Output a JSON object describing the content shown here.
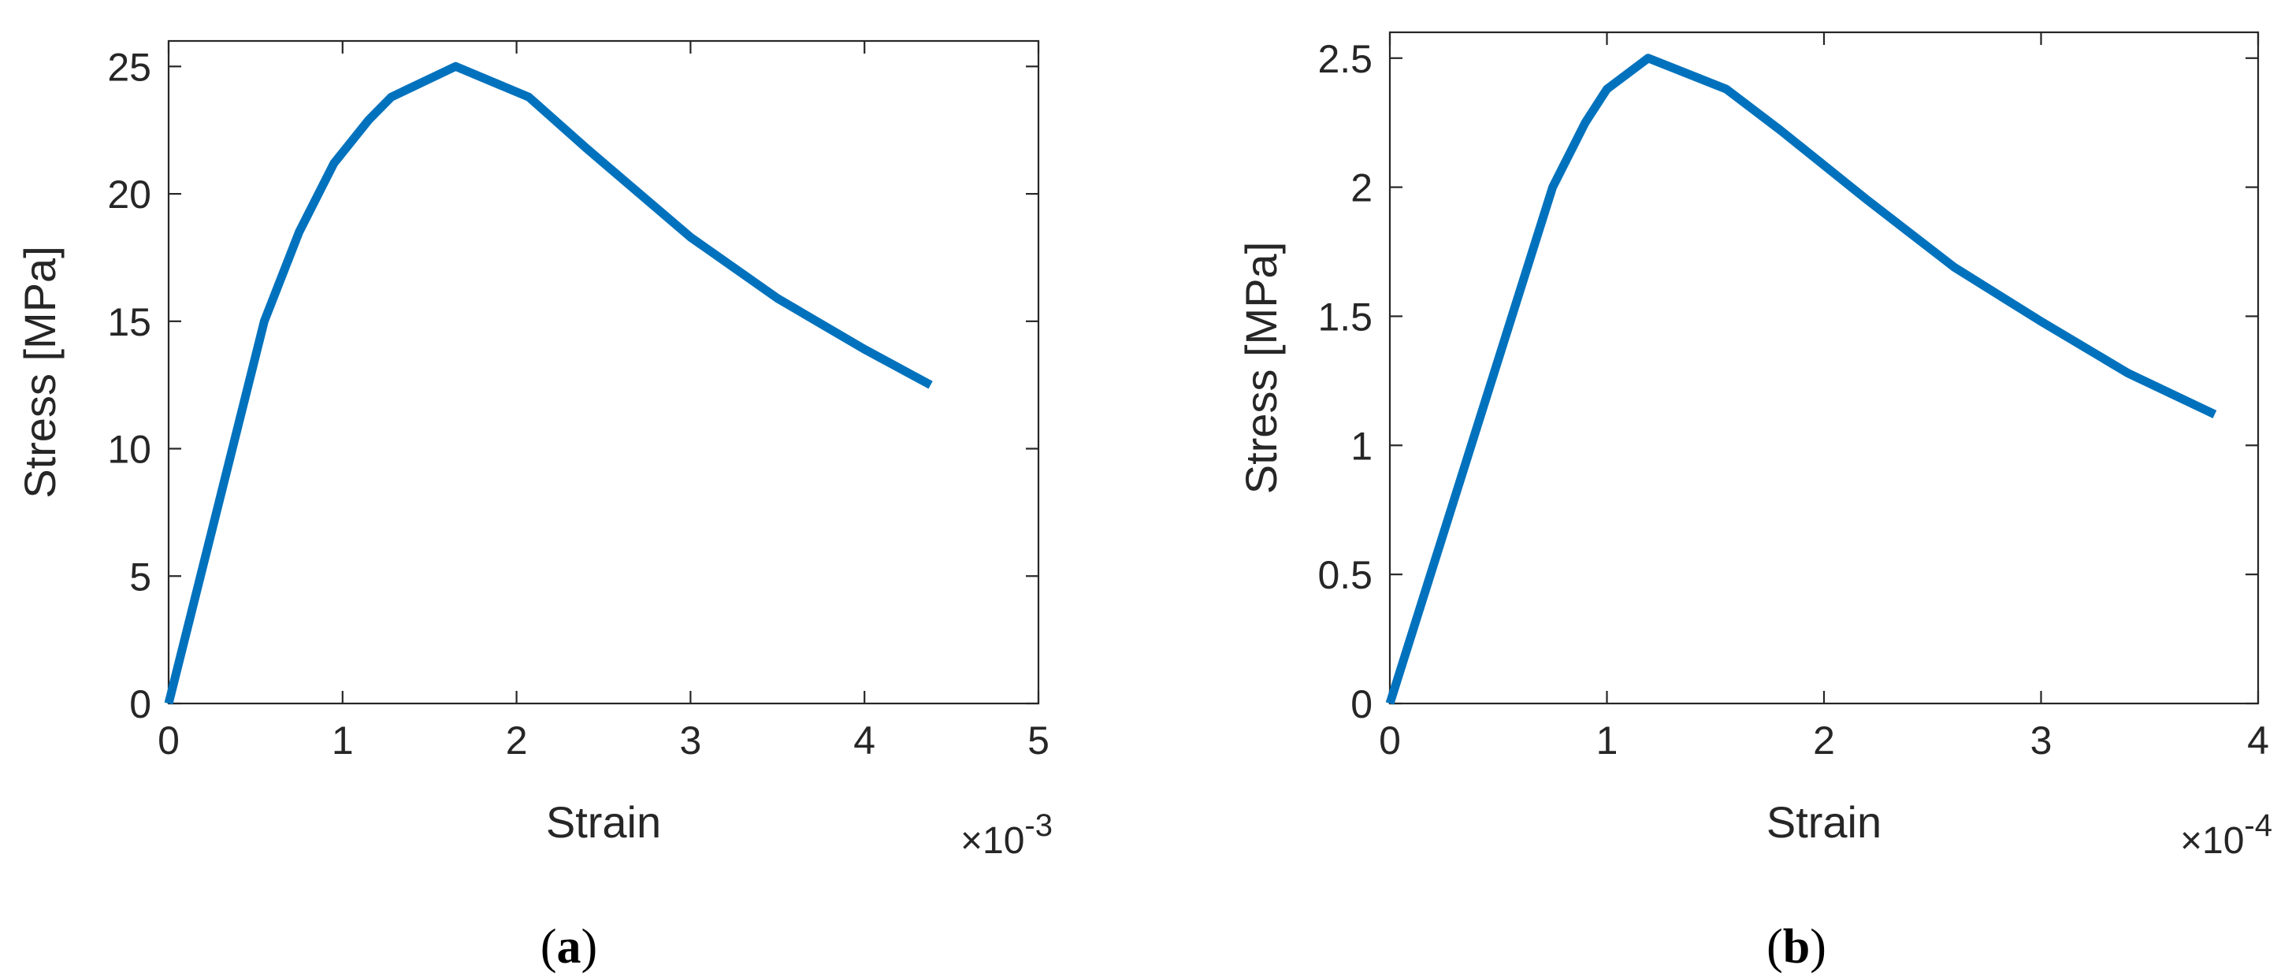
{
  "chart_data": [
    {
      "type": "line",
      "panel_label": "a",
      "xlabel": "Strain",
      "ylabel": "Stress [MPa]",
      "x_multiplier_label": "×10",
      "x_multiplier_exp": "-3",
      "xlim": [
        0,
        5
      ],
      "ylim": [
        0,
        26
      ],
      "xticks": [
        0,
        1,
        2,
        3,
        4,
        5
      ],
      "yticks": [
        0,
        5,
        10,
        15,
        20,
        25
      ],
      "xtick_labels": [
        "0",
        "1",
        "2",
        "3",
        "4",
        "5"
      ],
      "ytick_labels": [
        "0",
        "5",
        "10",
        "15",
        "20",
        "25"
      ],
      "grid": false,
      "color": "#0072BD",
      "series": [
        {
          "x": [
            0,
            0.55,
            0.75,
            0.95,
            1.15,
            1.28,
            1.65,
            2.07,
            2.4,
            3.0,
            3.5,
            4.0,
            4.38
          ],
          "y": [
            0,
            15.0,
            18.5,
            21.2,
            22.9,
            23.8,
            25.0,
            23.8,
            21.8,
            18.3,
            15.9,
            13.9,
            12.5
          ]
        }
      ]
    },
    {
      "type": "line",
      "panel_label": "b",
      "xlabel": "Strain",
      "ylabel": "Stress [MPa]",
      "x_multiplier_label": "×10",
      "x_multiplier_exp": "-4",
      "xlim": [
        0,
        4
      ],
      "ylim": [
        0,
        2.6
      ],
      "xticks": [
        0,
        1,
        2,
        3,
        4
      ],
      "yticks": [
        0,
        0.5,
        1,
        1.5,
        2,
        2.5
      ],
      "xtick_labels": [
        "0",
        "1",
        "2",
        "3",
        "4"
      ],
      "ytick_labels": [
        "0",
        "0.5",
        "1",
        "1.5",
        "2",
        "2.5"
      ],
      "grid": false,
      "color": "#0072BD",
      "series": [
        {
          "x": [
            0,
            0.75,
            0.9,
            1.0,
            1.19,
            1.55,
            1.8,
            2.2,
            2.6,
            3.0,
            3.4,
            3.8
          ],
          "y": [
            0,
            2.0,
            2.25,
            2.38,
            2.5,
            2.38,
            2.22,
            1.95,
            1.69,
            1.48,
            1.28,
            1.12
          ]
        }
      ]
    }
  ]
}
